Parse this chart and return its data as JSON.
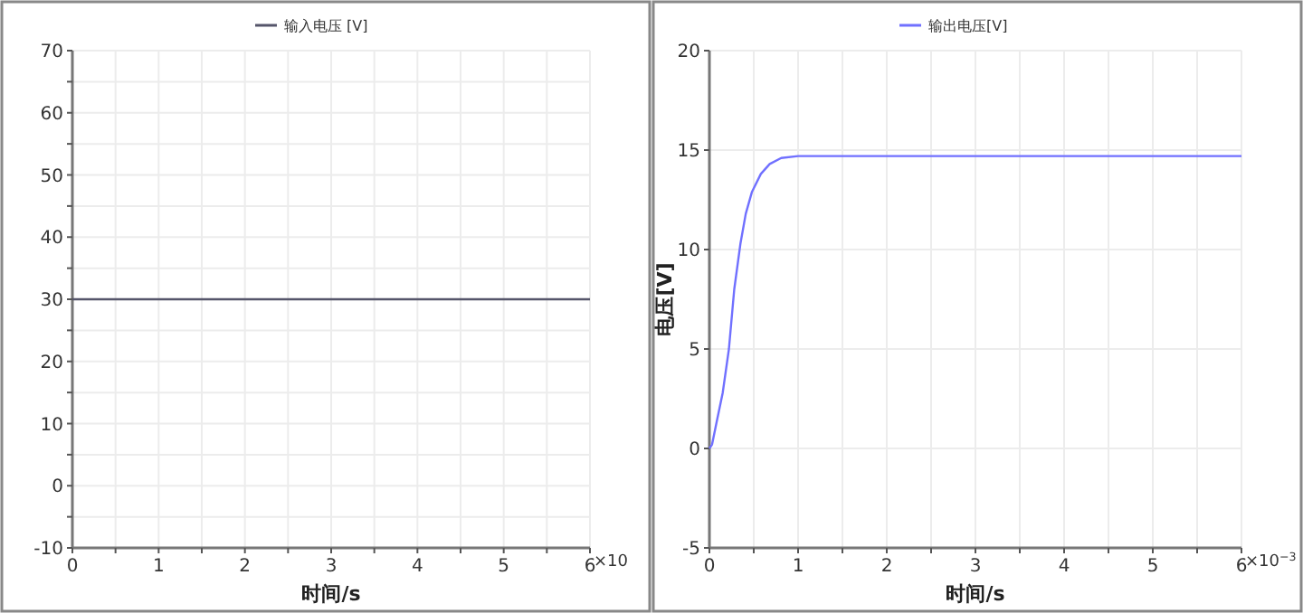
{
  "chart_data": [
    {
      "type": "line",
      "xlabel": "时间/s",
      "annotations": [
        "×10"
      ],
      "legend": "top",
      "grid": true,
      "marker": "none",
      "line_style": "solid",
      "x": [
        0,
        6
      ],
      "series": [
        {
          "name": "输入电压 [V]",
          "color": "#55556a",
          "values": [
            30,
            30
          ]
        }
      ],
      "xlim": [
        0,
        6
      ],
      "xticks": [
        0,
        {
          "value": 0.5,
          "label": null
        },
        1,
        {
          "value": 1.5,
          "label": null
        },
        2,
        {
          "value": 2.5,
          "label": null
        },
        3,
        {
          "value": 3.5,
          "label": null
        },
        4,
        {
          "value": 4.5,
          "label": null
        },
        5,
        {
          "value": 5.5,
          "label": null
        },
        6
      ],
      "ylim": [
        -10,
        70
      ],
      "yticks": [
        -10,
        {
          "value": -5,
          "label": null
        },
        0,
        {
          "value": 5,
          "label": null
        },
        10,
        {
          "value": 15,
          "label": null
        },
        20,
        {
          "value": 25,
          "label": null
        },
        30,
        {
          "value": 35,
          "label": null
        },
        40,
        {
          "value": 45,
          "label": null
        },
        50,
        {
          "value": 55,
          "label": null
        },
        60,
        {
          "value": 65,
          "label": null
        },
        70
      ]
    },
    {
      "type": "line",
      "xlabel": "时间/s",
      "ylabel": "电压[V]",
      "annotations": [
        "×10$^{−3}$"
      ],
      "legend": "top",
      "grid": true,
      "marker": "none",
      "line_style": "solid",
      "x": [
        0,
        0.03,
        0.08,
        0.15,
        0.22,
        0.28,
        0.35,
        0.41,
        0.48,
        0.58,
        0.68,
        0.81,
        1.0,
        2,
        3,
        4,
        5,
        6
      ],
      "series": [
        {
          "name": "输出电压[V]",
          "color": "#7070ff",
          "values": [
            0,
            0.2,
            1.3,
            2.8,
            5,
            8,
            10.3,
            11.8,
            12.9,
            13.8,
            14.3,
            14.6,
            14.7,
            14.7,
            14.7,
            14.7,
            14.7,
            14.7
          ]
        }
      ],
      "xlim": [
        0,
        6
      ],
      "xticks": [
        0,
        {
          "value": 0.5,
          "label": null
        },
        1,
        {
          "value": 1.5,
          "label": null
        },
        2,
        {
          "value": 2.5,
          "label": null
        },
        3,
        {
          "value": 3.5,
          "label": null
        },
        4,
        {
          "value": 4.5,
          "label": null
        },
        5,
        {
          "value": 5.5,
          "label": null
        },
        6
      ],
      "ylim": [
        -5,
        20
      ],
      "yticks": [
        -5,
        0,
        5,
        10,
        15,
        20
      ]
    }
  ]
}
